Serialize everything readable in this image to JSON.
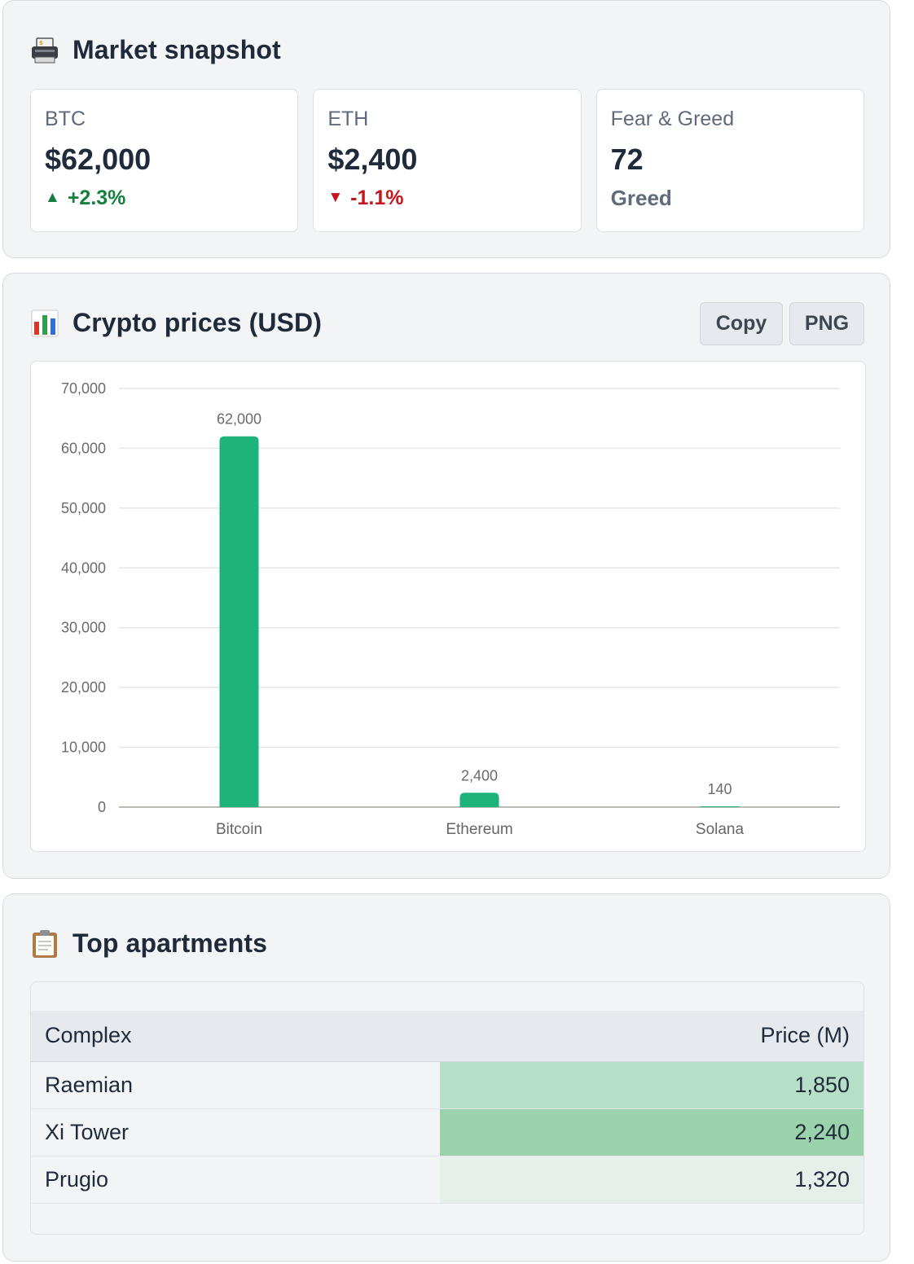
{
  "market": {
    "title": "Market snapshot",
    "icon": "printer-icon",
    "cards": [
      {
        "label": "BTC",
        "value": "$62,000",
        "delta": "+2.3%",
        "direction": "up"
      },
      {
        "label": "ETH",
        "value": "$2,400",
        "delta": "-1.1%",
        "direction": "down"
      },
      {
        "label": "Fear & Greed",
        "value": "72",
        "sentiment": "Greed"
      }
    ]
  },
  "chart_panel": {
    "title": "Crypto prices (USD)",
    "icon": "bar-chart-icon",
    "copy_label": "Copy",
    "png_label": "PNG"
  },
  "chart_data": {
    "type": "bar",
    "categories": [
      "Bitcoin",
      "Ethereum",
      "Solana"
    ],
    "values": [
      62000,
      2400,
      140
    ],
    "data_labels": [
      "62,000",
      "2,400",
      "140"
    ],
    "ylim": [
      0,
      70000
    ],
    "yticks": [
      0,
      10000,
      20000,
      30000,
      40000,
      50000,
      60000,
      70000
    ],
    "ytick_labels": [
      "0",
      "10,000",
      "20,000",
      "30,000",
      "40,000",
      "50,000",
      "60,000",
      "70,000"
    ],
    "grid": true,
    "bar_color": "#1db37b"
  },
  "apartments": {
    "title": "Top apartments",
    "icon": "clipboard-icon",
    "columns": [
      "Complex",
      "Price (M)"
    ],
    "rows": [
      {
        "name": "Raemian",
        "price": "1,850",
        "value": 1850
      },
      {
        "name": "Xi Tower",
        "price": "2,240",
        "value": 2240
      },
      {
        "name": "Prugio",
        "price": "1,320",
        "value": 1320
      }
    ],
    "heat_colors": [
      "#b5dfc6",
      "#9ad2ab",
      "#e7efea"
    ]
  }
}
